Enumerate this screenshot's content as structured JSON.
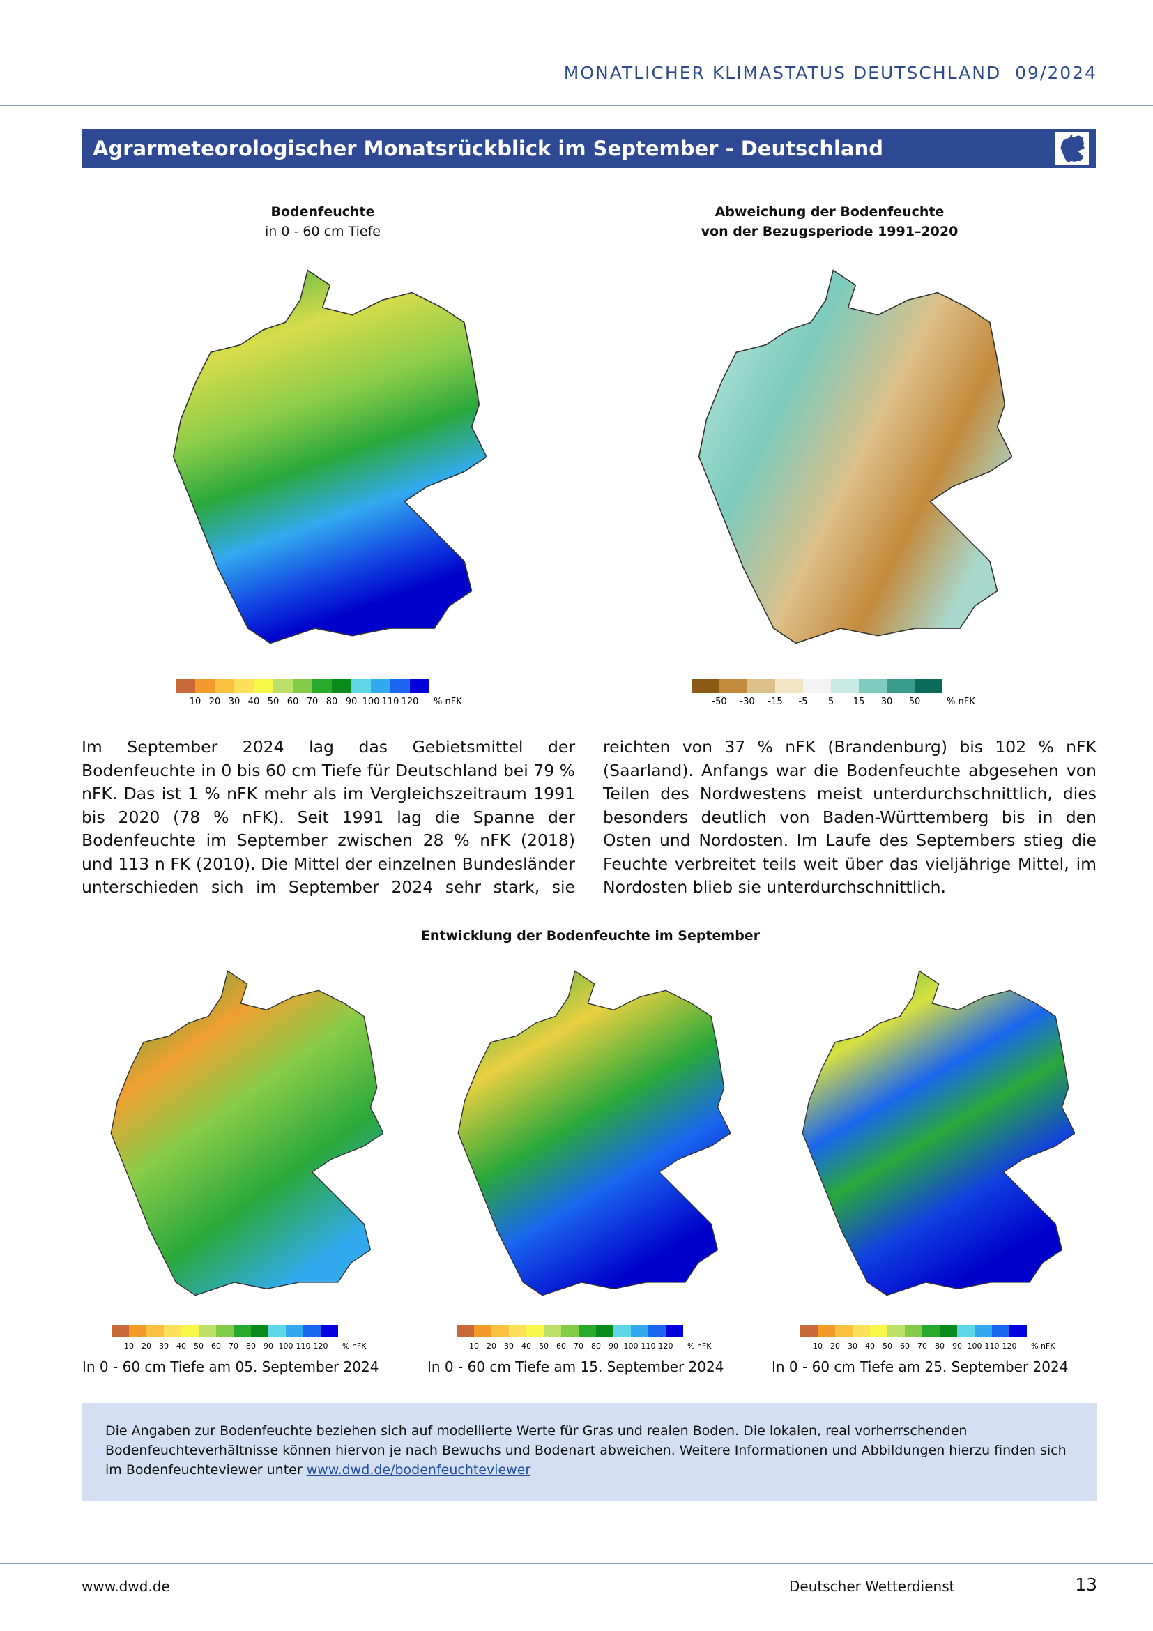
{
  "header": {
    "title": "MONATLICHER KLIMASTATUS DEUTSCHLAND",
    "issue": "09/2024"
  },
  "section": {
    "title": "Agrarmeteorologischer Monatsrückblick im September - Deutschland"
  },
  "maps_top": [
    {
      "title": "Bodenfeuchte",
      "subtitle": "in 0 - 60 cm Tiefe"
    },
    {
      "title": "Abweichung der Bodenfeuchte",
      "subtitle": "von der Bezugsperiode 1991–2020"
    }
  ],
  "legend_nfk": [
    "10",
    "20",
    "30",
    "40",
    "50",
    "60",
    "70",
    "80",
    "90",
    "100",
    "110",
    "120",
    "% nFK"
  ],
  "legend_dev": [
    "-50",
    "-30",
    "-15",
    "-5",
    "5",
    "15",
    "30",
    "50",
    "% nFK"
  ],
  "body": {
    "text": "Im September 2024 lag das Gebietsmittel der Bodenfeuchte in 0 bis 60 cm Tiefe für Deutschland bei 79 % nFK. Das ist 1 % nFK mehr als im Vergleichszeitraum 1991 bis 2020 (78 % nFK). Seit 1991 lag die Spanne der Bodenfeuchte im September zwischen 28 % nFK (2018) und 113 n FK (2010). Die Mittel der einzelnen Bundesländer unterschieden sich im September 2024 sehr stark, sie reichten von 37 % nFK (Brandenburg) bis 102 % nFK (Saarland). Anfangs war die Bodenfeuchte abgesehen von Teilen des Nordwestens meist unterdurchschnittlich, dies besonders deutlich von Baden-Württemberg bis in den Osten und Nordosten. Im Laufe des Septembers stieg die Feuchte verbreitet teils weit über das vieljährige Mittel, im Nordosten blieb sie unterdurchschnittlich."
  },
  "development": {
    "title": "Entwicklung der Bodenfeuchte im September",
    "captions": [
      "In 0 - 60 cm Tiefe am 05. September 2024",
      "In 0 - 60 cm Tiefe am 15. September 2024",
      "In 0 - 60 cm Tiefe am 25. September 2024"
    ]
  },
  "note": {
    "text": "Die Angaben zur Bodenfeuchte beziehen sich auf modellierte Werte für Gras und realen Boden. Die lokalen, real vorherrschenden Bodenfeuchteverhältnisse können hiervon je nach Bewuchs und Bodenart abweichen. Weitere Informationen und Abbildungen hierzu finden sich im Bodenfeuchteviewer unter",
    "link": "www.dwd.de/bodenfeuchteviewer"
  },
  "footer": {
    "left": "www.dwd.de",
    "center": "Deutscher Wetterdienst",
    "page": "13"
  }
}
